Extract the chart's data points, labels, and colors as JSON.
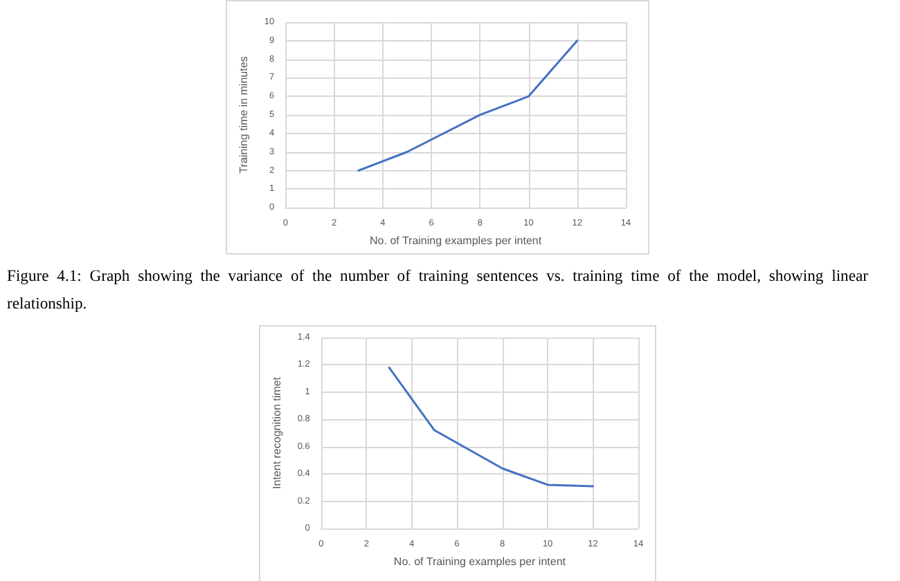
{
  "chart_data": [
    {
      "type": "line",
      "xlabel": "No. of Training examples per intent",
      "ylabel": "Training time in minutes",
      "x": [
        3,
        5,
        8,
        10,
        12
      ],
      "series": [
        {
          "color": "#4472c4",
          "values": [
            2,
            3,
            5,
            6,
            9
          ]
        }
      ],
      "xlim": [
        0,
        14
      ],
      "xticks": [
        0,
        2,
        4,
        6,
        8,
        10,
        12,
        14
      ],
      "ylim": [
        0,
        10
      ],
      "yticks": [
        0,
        1,
        2,
        3,
        4,
        5,
        6,
        7,
        8,
        9,
        10
      ],
      "grid": true,
      "marker": "none",
      "line_style": "solid",
      "annotations": [
        "Figure 4.1: Graph showing the variance of the number of training sentences vs. training time of the model, showing linear relationship."
      ]
    },
    {
      "type": "line",
      "xlabel": "No. of Training examples per intent",
      "ylabel": "Intent recognition timet",
      "x": [
        3,
        5,
        8,
        10,
        12
      ],
      "series": [
        {
          "color": "#4472c4",
          "values": [
            1.18,
            0.72,
            0.44,
            0.32,
            0.31
          ]
        }
      ],
      "xlim": [
        0,
        14
      ],
      "xticks": [
        0,
        2,
        4,
        6,
        8,
        10,
        12,
        14
      ],
      "ylim": [
        0,
        1.4
      ],
      "yticks": [
        0,
        0.2,
        0.4,
        0.6,
        0.8,
        1,
        1.2,
        1.4
      ],
      "grid": true,
      "marker": "none",
      "line_style": "solid"
    }
  ]
}
